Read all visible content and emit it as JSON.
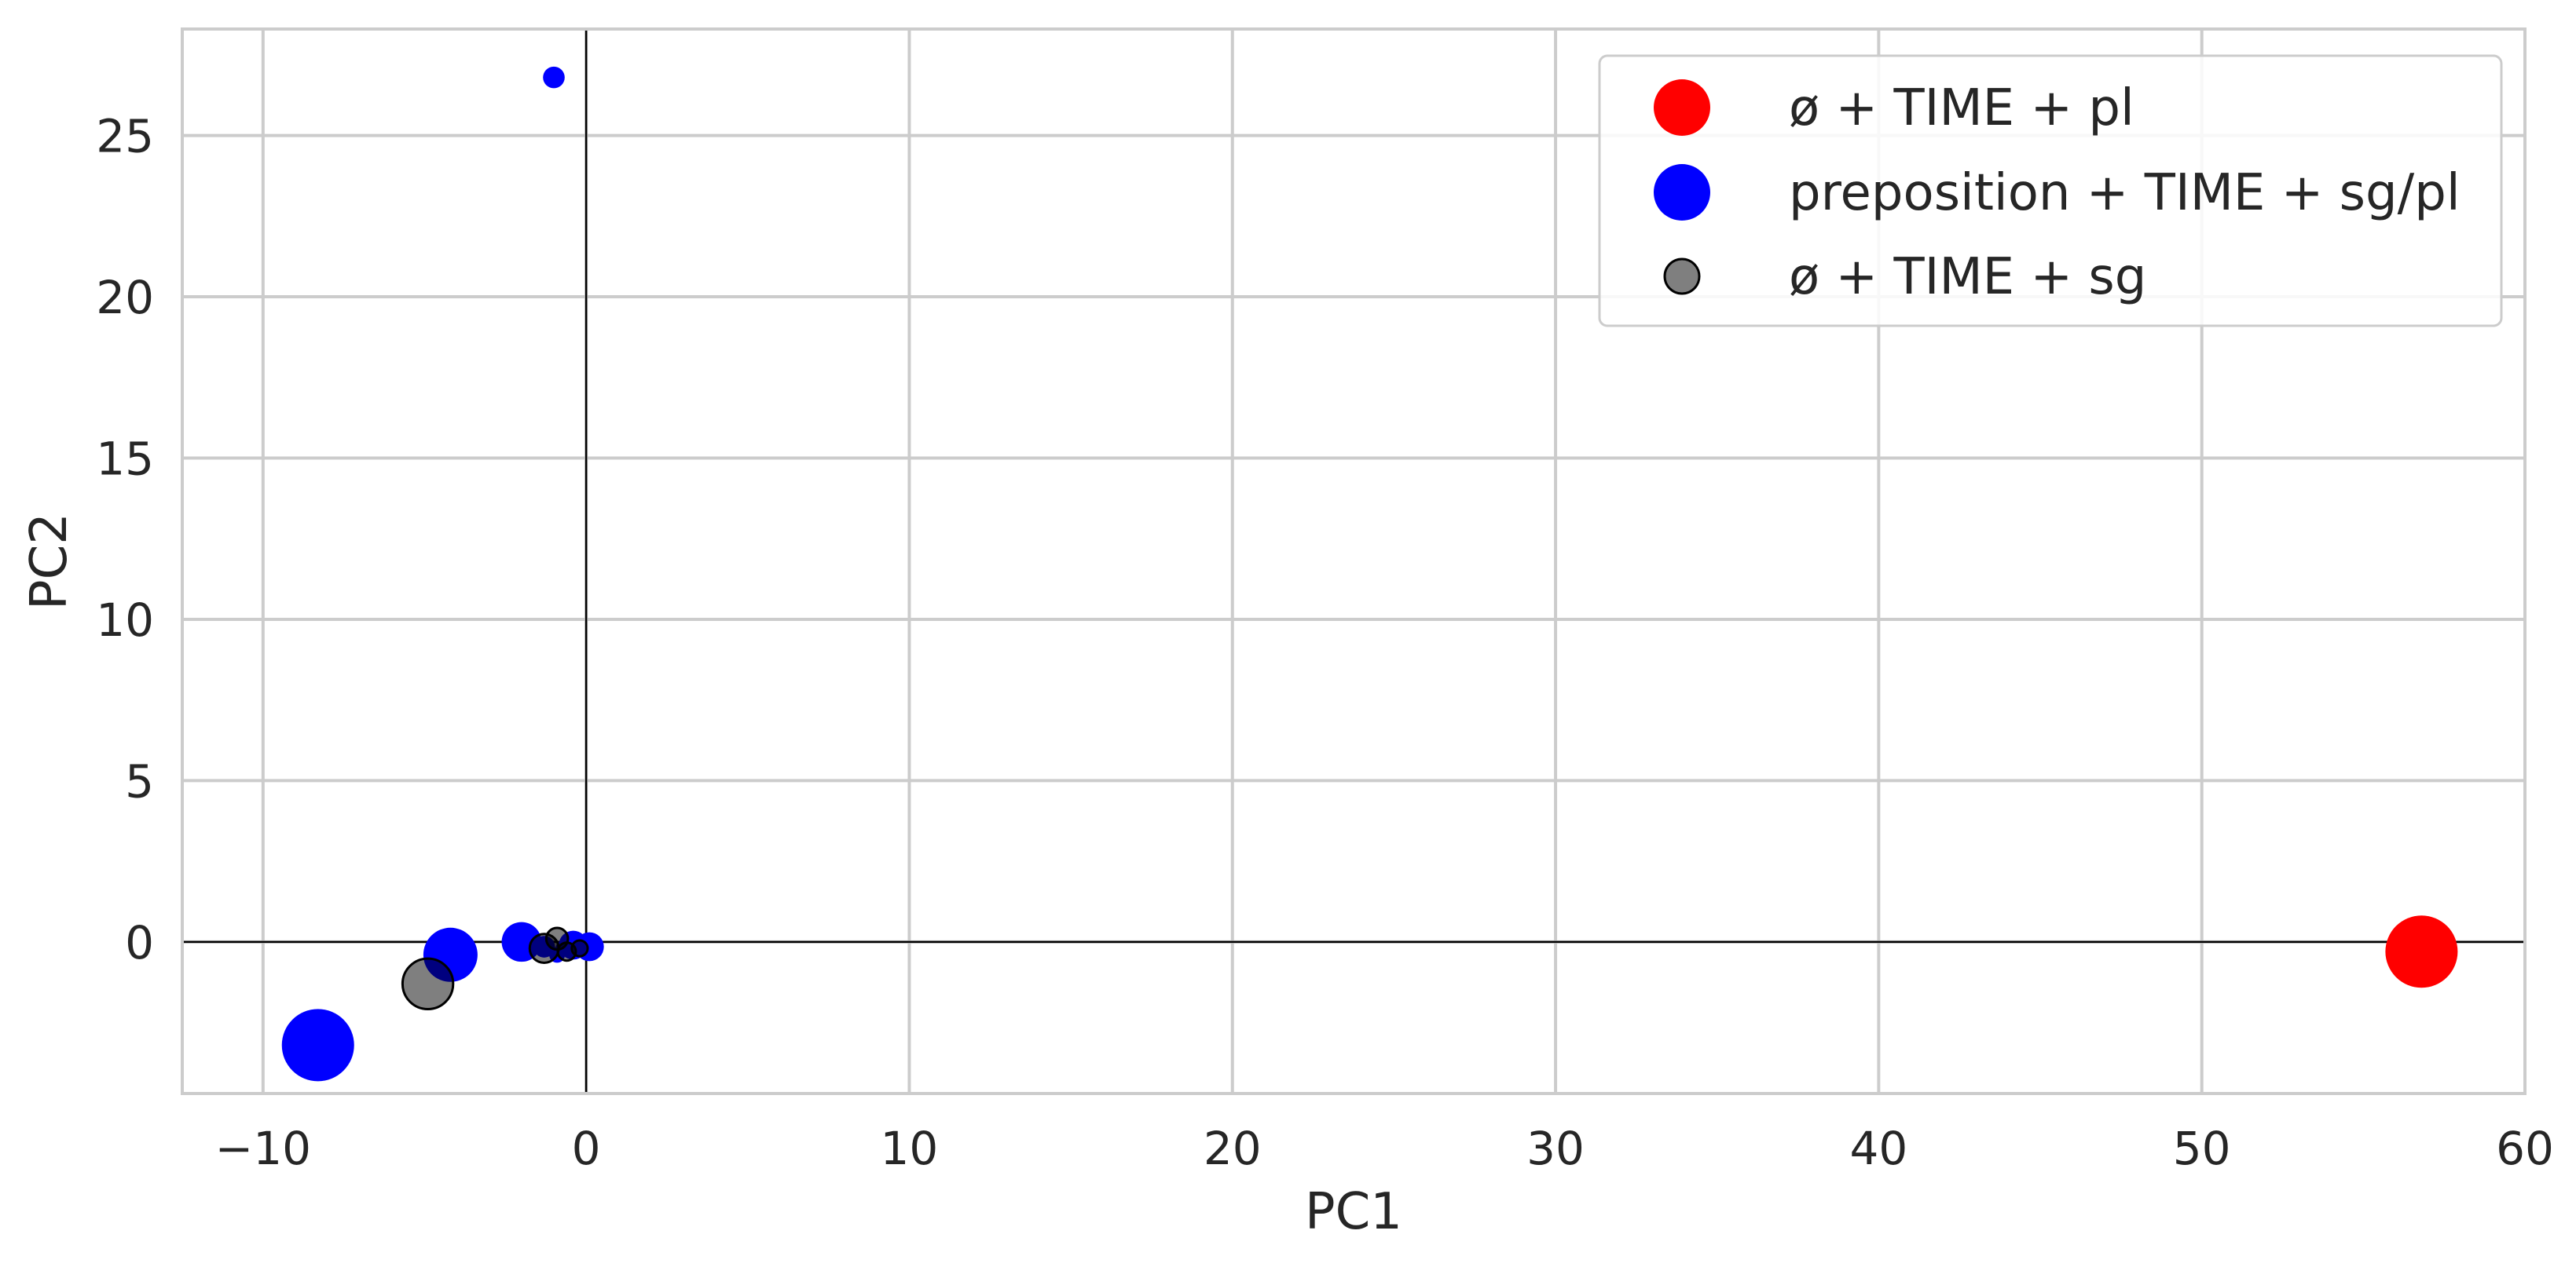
{
  "chart_data": {
    "type": "scatter",
    "xlabel": "PC1",
    "ylabel": "PC2",
    "xlim": [
      -12.5,
      60
    ],
    "ylim": [
      -4.7,
      28.3
    ],
    "xticks": [
      -10,
      0,
      10,
      20,
      30,
      40,
      50,
      60
    ],
    "xtick_labels": [
      "−10",
      "0",
      "10",
      "20",
      "30",
      "40",
      "50",
      "60"
    ],
    "yticks": [
      0,
      5,
      10,
      15,
      20,
      25
    ],
    "ytick_labels": [
      "0",
      "5",
      "10",
      "15",
      "20",
      "25"
    ],
    "grid": true,
    "reference_lines": {
      "x": 0,
      "y": 0
    },
    "legend_position": "top-right",
    "series": [
      {
        "name": "ø + TIME + pl",
        "color": "#ff0000",
        "points": [
          {
            "x": 56.8,
            "y": -0.3,
            "size": 1.0
          }
        ]
      },
      {
        "name": "preposition + TIME + sg/pl",
        "color": "#0000ff",
        "points": [
          {
            "x": -1.0,
            "y": 26.8,
            "size": 0.3
          },
          {
            "x": -8.3,
            "y": -3.2,
            "size": 1.0
          },
          {
            "x": -4.2,
            "y": -0.4,
            "size": 0.75
          },
          {
            "x": -2.0,
            "y": 0.0,
            "size": 0.55
          },
          {
            "x": -0.4,
            "y": -0.1,
            "size": 0.4
          },
          {
            "x": 0.1,
            "y": -0.15,
            "size": 0.4
          },
          {
            "x": -1.3,
            "y": -0.15,
            "size": 0.3
          },
          {
            "x": -0.9,
            "y": -0.4,
            "size": 0.22
          },
          {
            "x": -0.7,
            "y": -0.2,
            "size": 0.22
          }
        ]
      },
      {
        "name": "ø + TIME + sg",
        "color": "#000000",
        "opacity": 0.5,
        "points": [
          {
            "x": -4.9,
            "y": -1.3,
            "size": 0.7
          },
          {
            "x": -1.3,
            "y": -0.2,
            "size": 0.4
          },
          {
            "x": -0.9,
            "y": 0.1,
            "size": 0.3
          },
          {
            "x": -0.6,
            "y": -0.3,
            "size": 0.25
          },
          {
            "x": -0.2,
            "y": -0.2,
            "size": 0.22
          }
        ]
      }
    ]
  }
}
